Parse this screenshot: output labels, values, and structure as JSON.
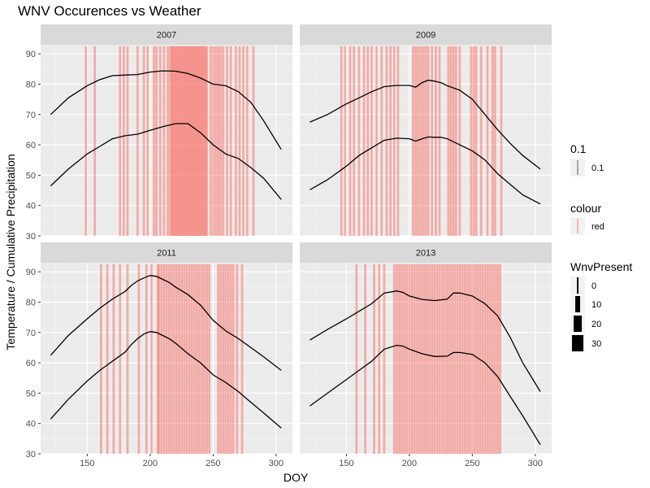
{
  "title": "WNV Occurences vs Weather",
  "chart_data": {
    "type": "line",
    "xlabel": "DOY",
    "ylabel": "Temperature / Cumulative Precipitation",
    "xlim": [
      113,
      313
    ],
    "ylim": [
      30,
      93
    ],
    "xticks": [
      150,
      200,
      250,
      300
    ],
    "yticks": [
      30,
      40,
      50,
      60,
      70,
      80,
      90
    ],
    "vline_color": "#f8766d",
    "panels": [
      {
        "strip": "2007",
        "series": [
          {
            "x": [
              121,
              135,
              150,
              160,
              170,
              180,
              190,
              200,
              210,
              220,
              230,
              240,
              250,
              260,
              270,
              280,
              290,
              304
            ],
            "y": [
              70,
              75.5,
              79.5,
              81.5,
              82.8,
              83,
              83.2,
              84,
              84.4,
              84.3,
              83.5,
              82,
              80,
              79.5,
              77.5,
              74,
              68,
              58.5
            ]
          },
          {
            "x": [
              121,
              135,
              150,
              160,
              170,
              180,
              190,
              200,
              210,
              220,
              230,
              240,
              250,
              260,
              270,
              280,
              290,
              304
            ],
            "y": [
              46.5,
              52,
              57,
              59.5,
              62,
              63,
              63.5,
              64.8,
              66,
              67,
              67,
              64,
              60,
              57,
              55.5,
              52.5,
              49,
              42
            ]
          }
        ],
        "wnv_days": [
          149,
          156,
          176,
          179,
          182,
          190,
          195,
          198,
          203,
          205,
          208,
          211,
          214,
          216,
          217,
          218,
          219,
          220,
          221,
          222,
          223,
          224,
          225,
          226,
          227,
          228,
          229,
          230,
          231,
          232,
          233,
          234,
          235,
          236,
          237,
          238,
          239,
          240,
          241,
          242,
          243,
          244,
          245,
          248,
          250,
          252,
          254,
          256,
          258,
          261,
          264,
          268,
          271,
          274,
          277,
          282
        ]
      },
      {
        "strip": "2009",
        "series": [
          {
            "x": [
              121,
              135,
              150,
              160,
              170,
              180,
              190,
              200,
              205,
              210,
              215,
              220,
              225,
              230,
              240,
              250,
              260,
              270,
              280,
              290,
              304
            ],
            "y": [
              67.5,
              70,
              73.5,
              75.5,
              77.5,
              79.2,
              79.6,
              79.6,
              79,
              80.5,
              81.3,
              81,
              80.5,
              79.5,
              78,
              75,
              70,
              65,
              60.5,
              56.5,
              52
            ]
          },
          {
            "x": [
              121,
              135,
              150,
              160,
              170,
              180,
              190,
              200,
              205,
              210,
              215,
              220,
              225,
              230,
              240,
              250,
              260,
              270,
              280,
              290,
              304
            ],
            "y": [
              45.2,
              48.5,
              53,
              56.5,
              59,
              61.5,
              62.2,
              62,
              61.2,
              62,
              62.6,
              62.5,
              62.5,
              62,
              60,
              58,
              55,
              50.5,
              47,
              43.5,
              40.5
            ]
          }
        ],
        "wnv_days": [
          146,
          149,
          153,
          156,
          160,
          164,
          167,
          170,
          174,
          178,
          182,
          185,
          188,
          191,
          203,
          205,
          207,
          209,
          211,
          213,
          215,
          218,
          221,
          224,
          231,
          233,
          235,
          237,
          240,
          249,
          251,
          253,
          257,
          262,
          266,
          268,
          273
        ]
      },
      {
        "strip": "2011",
        "series": [
          {
            "x": [
              121,
              135,
              150,
              160,
              170,
              180,
              185,
              190,
              195,
              200,
              205,
              210,
              215,
              220,
              230,
              240,
              250,
              260,
              270,
              280,
              290,
              304
            ],
            "y": [
              62.5,
              69,
              74.5,
              78,
              81,
              83.5,
              85.5,
              87,
              88,
              88.8,
              88.5,
              87.5,
              86.5,
              85,
              82.5,
              79,
              74,
              70.5,
              68,
              65,
              62,
              57.5
            ]
          },
          {
            "x": [
              121,
              135,
              150,
              160,
              170,
              180,
              185,
              190,
              195,
              200,
              205,
              210,
              215,
              220,
              230,
              240,
              250,
              260,
              270,
              280,
              290,
              304
            ],
            "y": [
              41.5,
              48,
              54,
              57.5,
              60.5,
              63.5,
              66,
              68,
              69.5,
              70.3,
              70,
              69,
              68,
              66.5,
              63,
              60,
              56,
              53.5,
              50.5,
              47,
              43.5,
              38.5
            ]
          }
        ],
        "wnv_days": [
          161,
          166,
          171,
          176,
          182,
          191,
          197,
          201,
          206,
          207,
          209,
          211,
          213,
          215,
          217,
          219,
          221,
          223,
          225,
          227,
          229,
          231,
          233,
          235,
          237,
          239,
          241,
          243,
          245,
          247,
          254,
          256,
          258,
          260,
          262,
          264,
          266,
          269,
          273
        ]
      },
      {
        "strip": "2013",
        "series": [
          {
            "x": [
              121,
              135,
              150,
              160,
              170,
              180,
              190,
              195,
              200,
              210,
              220,
              230,
              235,
              240,
              250,
              260,
              270,
              280,
              290,
              304
            ],
            "y": [
              67.5,
              71,
              74.5,
              77,
              79.5,
              83,
              83.7,
              83.2,
              82,
              80.9,
              80.5,
              81,
              83,
              83,
              82,
              79.5,
              75.5,
              68.5,
              60,
              50.5
            ]
          },
          {
            "x": [
              121,
              135,
              150,
              160,
              170,
              180,
              190,
              195,
              200,
              210,
              220,
              230,
              235,
              240,
              250,
              260,
              270,
              280,
              290,
              304
            ],
            "y": [
              45.8,
              50,
              54.5,
              57.5,
              60.5,
              64.5,
              65.8,
              65.5,
              64.5,
              63,
              62.1,
              62.2,
              63.4,
              63.4,
              62.8,
              60,
              55.5,
              49,
              42.5,
              33
            ]
          }
        ],
        "wnv_days": [
          158,
          165,
          172,
          176,
          180,
          188,
          190,
          192,
          194,
          196,
          198,
          200,
          202,
          204,
          206,
          208,
          210,
          212,
          214,
          216,
          218,
          220,
          222,
          224,
          226,
          228,
          230,
          232,
          234,
          236,
          238,
          240,
          242,
          244,
          246,
          248,
          250,
          252,
          254,
          256,
          258,
          260,
          262,
          264,
          266,
          268,
          270,
          272
        ]
      }
    ],
    "legend": {
      "blocks": [
        {
          "title": "0.1",
          "keys": [
            "0.1"
          ]
        },
        {
          "title": "colour",
          "keys": [
            "red"
          ]
        },
        {
          "title": "WnvPresent",
          "keys": [
            "0",
            "10",
            "20",
            "30"
          ]
        }
      ]
    }
  }
}
